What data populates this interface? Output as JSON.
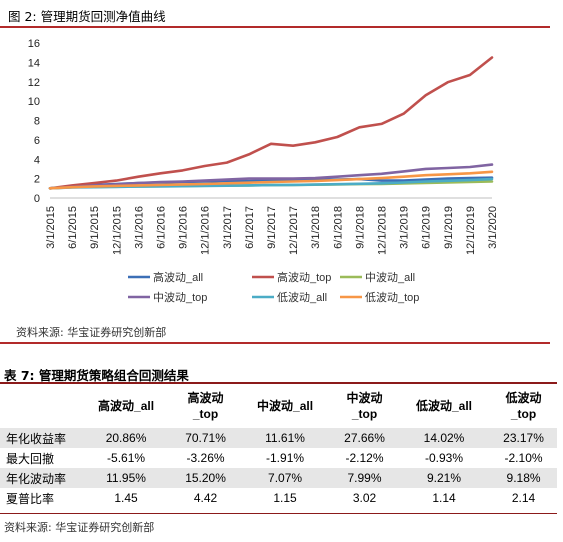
{
  "figure": {
    "title": "图 2:  管理期货回测净值曲线",
    "source": "资料来源:  华宝证券研究创新部"
  },
  "chart_data": {
    "type": "line",
    "title": "",
    "xlabel": "",
    "ylabel": "",
    "ylim": [
      0,
      16
    ],
    "yticks": [
      0,
      2,
      4,
      6,
      8,
      10,
      12,
      14,
      16
    ],
    "grid": false,
    "legend_position": "bottom",
    "categories": [
      "3/1/2015",
      "6/1/2015",
      "9/1/2015",
      "12/1/2015",
      "3/1/2016",
      "6/1/2016",
      "9/1/2016",
      "12/1/2016",
      "3/1/2017",
      "6/1/2017",
      "9/1/2017",
      "12/1/2017",
      "3/1/2018",
      "6/1/2018",
      "9/1/2018",
      "12/1/2018",
      "3/1/2019",
      "6/1/2019",
      "9/1/2019",
      "12/1/2019",
      "3/1/2020"
    ],
    "series": [
      {
        "name": "高波动_all",
        "color": "#3c6fb6",
        "values": [
          1.0,
          1.2,
          1.35,
          1.45,
          1.55,
          1.6,
          1.65,
          1.7,
          1.75,
          1.75,
          1.85,
          1.8,
          1.85,
          1.9,
          1.95,
          1.8,
          1.8,
          1.9,
          2.0,
          2.05,
          2.1
        ]
      },
      {
        "name": "高波动_top",
        "color": "#c0504d",
        "values": [
          1.0,
          1.3,
          1.55,
          1.8,
          2.2,
          2.55,
          2.85,
          3.3,
          3.65,
          4.5,
          5.6,
          5.4,
          5.75,
          6.3,
          7.3,
          7.65,
          8.7,
          10.6,
          11.95,
          12.7,
          14.5
        ]
      },
      {
        "name": "中波动_all",
        "color": "#9bbb59",
        "values": [
          1.0,
          1.1,
          1.15,
          1.18,
          1.2,
          1.22,
          1.25,
          1.27,
          1.28,
          1.3,
          1.33,
          1.35,
          1.37,
          1.4,
          1.43,
          1.45,
          1.5,
          1.55,
          1.6,
          1.65,
          1.7
        ]
      },
      {
        "name": "中波动_top",
        "color": "#8064a2",
        "values": [
          1.0,
          1.15,
          1.3,
          1.4,
          1.55,
          1.65,
          1.7,
          1.8,
          1.9,
          2.0,
          2.0,
          2.0,
          2.05,
          2.2,
          2.35,
          2.5,
          2.75,
          3.0,
          3.1,
          3.2,
          3.45
        ]
      },
      {
        "name": "低波动_all",
        "color": "#4bacc6",
        "values": [
          1.0,
          1.08,
          1.12,
          1.15,
          1.18,
          1.2,
          1.22,
          1.25,
          1.27,
          1.3,
          1.33,
          1.35,
          1.38,
          1.42,
          1.47,
          1.52,
          1.6,
          1.7,
          1.78,
          1.85,
          1.95
        ]
      },
      {
        "name": "低波动_top",
        "color": "#f79646",
        "values": [
          1.0,
          1.12,
          1.2,
          1.25,
          1.3,
          1.35,
          1.4,
          1.45,
          1.52,
          1.58,
          1.65,
          1.7,
          1.75,
          1.85,
          1.95,
          2.05,
          2.2,
          2.35,
          2.45,
          2.55,
          2.7
        ]
      }
    ]
  },
  "table": {
    "title": "表 7:  管理期货策略组合回测结果",
    "columns": [
      "",
      "高波动_all",
      "高波动\n_top",
      "中波动_all",
      "中波动\n_top",
      "低波动_all",
      "低波动\n_top"
    ],
    "rows": [
      {
        "label": "年化收益率",
        "values": [
          "20.86%",
          "70.71%",
          "11.61%",
          "27.66%",
          "14.02%",
          "23.17%"
        ]
      },
      {
        "label": "最大回撤",
        "values": [
          "-5.61%",
          "-3.26%",
          "-1.91%",
          "-2.12%",
          "-0.93%",
          "-2.10%"
        ]
      },
      {
        "label": "年化波动率",
        "values": [
          "11.95%",
          "15.20%",
          "7.07%",
          "7.99%",
          "9.21%",
          "9.18%"
        ]
      },
      {
        "label": "夏普比率",
        "values": [
          "1.45",
          "4.42",
          "1.15",
          "3.02",
          "1.14",
          "2.14"
        ]
      }
    ],
    "source": "资料来源:  华宝证券研究创新部"
  }
}
